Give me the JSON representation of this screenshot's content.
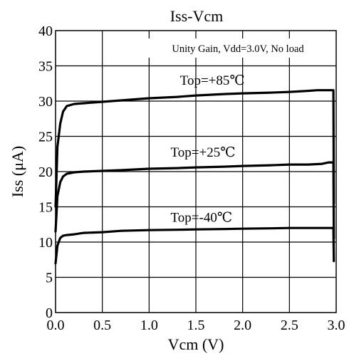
{
  "chart_data": {
    "type": "line",
    "title": "Iss-Vcm",
    "xlabel": "Vcm (V)",
    "ylabel": "Iss (μA)",
    "xlim": [
      0,
      3.0
    ],
    "ylim": [
      0,
      40
    ],
    "xticks": [
      "0.0",
      "0.5",
      "1.0",
      "1.5",
      "2.0",
      "2.5",
      "3.0"
    ],
    "yticks": [
      "0",
      "5",
      "10",
      "15",
      "20",
      "25",
      "30",
      "35",
      "40"
    ],
    "grid": true,
    "annotation": "Unity Gain, Vdd=3.0V, No load",
    "series": [
      {
        "name": "Top=+85℃",
        "x": [
          0.0,
          0.02,
          0.05,
          0.08,
          0.12,
          0.2,
          0.3,
          0.5,
          0.7,
          1.0,
          1.3,
          1.5,
          1.8,
          2.0,
          2.3,
          2.5,
          2.7,
          2.8,
          2.97,
          2.975
        ],
        "y": [
          15.0,
          23.5,
          26.8,
          28.5,
          29.3,
          29.6,
          29.7,
          29.9,
          30.1,
          30.4,
          30.6,
          30.8,
          31.0,
          31.1,
          31.2,
          31.3,
          31.45,
          31.55,
          31.55,
          15.5
        ]
      },
      {
        "name": "Top=+25℃",
        "x": [
          0.0,
          0.02,
          0.05,
          0.08,
          0.12,
          0.2,
          0.3,
          0.5,
          0.7,
          1.0,
          1.3,
          1.5,
          1.8,
          2.0,
          2.3,
          2.5,
          2.7,
          2.85,
          2.92,
          2.97,
          2.975
        ],
        "y": [
          11.5,
          16.5,
          18.5,
          19.3,
          19.7,
          19.9,
          20.0,
          20.1,
          20.2,
          20.4,
          20.5,
          20.6,
          20.7,
          20.8,
          20.9,
          21.0,
          21.0,
          21.1,
          21.3,
          21.3,
          10.5
        ]
      },
      {
        "name": "Top=-40℃",
        "x": [
          0.0,
          0.02,
          0.05,
          0.08,
          0.12,
          0.2,
          0.3,
          0.5,
          0.7,
          1.0,
          1.3,
          1.5,
          1.8,
          2.0,
          2.3,
          2.5,
          2.7,
          2.97,
          2.975
        ],
        "y": [
          7.0,
          9.5,
          10.6,
          10.9,
          11.0,
          11.1,
          11.3,
          11.4,
          11.6,
          11.7,
          11.75,
          11.8,
          11.85,
          11.9,
          11.95,
          12.0,
          12.0,
          12.0,
          7.3
        ]
      }
    ],
    "series_labels": [
      {
        "text": "Top=+85℃",
        "x": 1.33,
        "y": 32.3
      },
      {
        "text": "Top=+25℃",
        "x": 1.23,
        "y": 22.1
      },
      {
        "text": "Top=-40℃",
        "x": 1.23,
        "y": 12.9
      }
    ]
  }
}
